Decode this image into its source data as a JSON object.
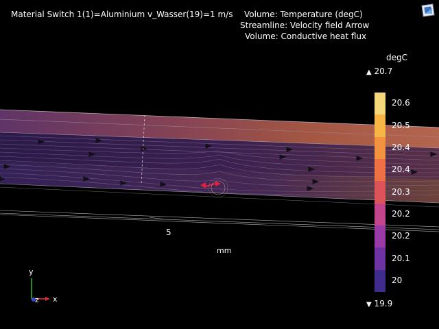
{
  "header": {
    "left": "Material Switch 1(1)=Aluminium v_Wasser(19)=1 m/s",
    "line1": "Volume: Temperature (degC)",
    "line2": "Streamline: Velocity field  Arrow",
    "line3": "Volume: Conductive heat flux"
  },
  "axis": {
    "tick": "5",
    "unit": "mm"
  },
  "triad": {
    "y": "y",
    "z": "z",
    "x": "x"
  },
  "colorbar": {
    "unit": "degC",
    "max_label": "20.7",
    "min_label": "19.9",
    "ticks": [
      "20.6",
      "20.5",
      "20.4",
      "20.4",
      "20.3",
      "20.2",
      "20.2",
      "20.1",
      "20"
    ],
    "colors": [
      "#f5d77b",
      "#f6b545",
      "#f3923f",
      "#ee7045",
      "#dc535a",
      "#c2448a",
      "#9a3aa6",
      "#6e33a3",
      "#3f2c8c"
    ]
  },
  "icons": {
    "corner": "graphics-toolbar-icon"
  }
}
